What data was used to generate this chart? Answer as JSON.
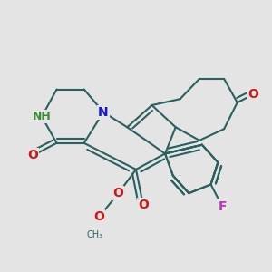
{
  "bg": "#e4e4e4",
  "bc": "#2a6060",
  "lw": 1.5,
  "N_c": "#1515dd",
  "NH_c": "#3a8a3a",
  "O_c": "#cc1818",
  "F_c": "#bb33bb",
  "fs": 9,
  "dpi": 100,
  "xlim": [
    -1.7,
    1.7
  ],
  "ylim": [
    -1.7,
    1.7
  ]
}
